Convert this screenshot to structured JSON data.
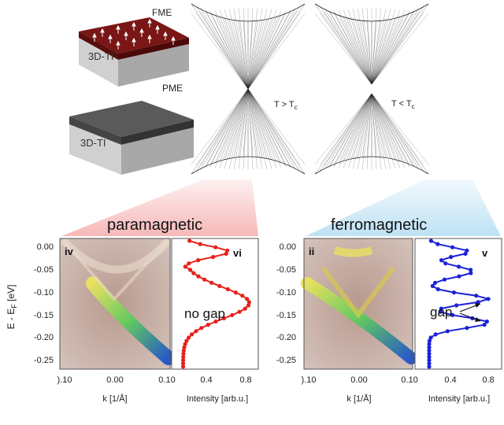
{
  "schematic": {
    "fme_label": "FME",
    "pme_label": "PME",
    "ti_label_top": "3D-TI",
    "ti_label_bottom": "3D-TI",
    "cone_left_label_main": "T > T",
    "cone_left_label_sub": "c",
    "cone_right_label_main": "T < T",
    "cone_right_label_sub": "c",
    "colors": {
      "fme_cap": "#7a1616",
      "pme_cap": "#5a5a5a",
      "block_side": "#c8c8c8",
      "mesh": "#222222"
    }
  },
  "panels": {
    "left_title": "paramagnetic",
    "right_title": "ferromagnetic",
    "arpes_left_tag": "iv",
    "edc_left_tag": "vi",
    "arpes_right_tag": "ii",
    "edc_right_tag": "v",
    "edc_left_annotation": "no gap",
    "edc_right_annotation": "gap",
    "y_axis_label": "E - E",
    "y_axis_label_sub": "F",
    "y_axis_unit": " [eV]",
    "y_ticks": [
      "0.00",
      "-0.05",
      "-0.10",
      "-0.15",
      "-0.20",
      "-0.25"
    ],
    "k_ticks": [
      ").10",
      "0.00",
      "0.10"
    ],
    "intensity_ticks": [
      "0.4",
      "0.8"
    ],
    "k_label": "k [1/Å]",
    "intensity_label": "Intensity [arb.u.]",
    "colors": {
      "left_edc": "#e8201c",
      "right_edc": "#1a22d8",
      "left_glow": "#f4a0a0",
      "right_glow": "#a8d8f0"
    }
  }
}
